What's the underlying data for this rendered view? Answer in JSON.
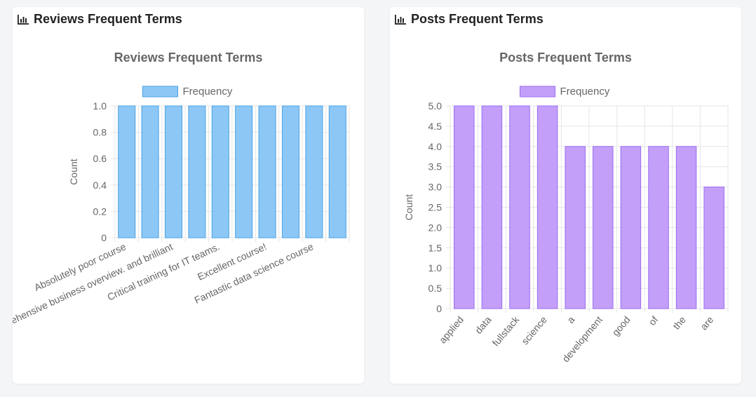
{
  "cards": [
    {
      "header": "Reviews Frequent Terms",
      "icon": "bar-chart-icon"
    },
    {
      "header": "Posts Frequent Terms",
      "icon": "bar-chart-icon"
    }
  ],
  "chart_data": [
    {
      "type": "bar",
      "title": "Reviews Frequent Terms",
      "ylabel": "Count",
      "xlabel": "",
      "legend_position": "top",
      "categories": [
        "Absolutely poor course",
        "",
        "Comprehensive business overview. and brilliant",
        "",
        "Critical training for IT teams.",
        "",
        "Excellent course!",
        "",
        "Fantastic data science course",
        ""
      ],
      "series": [
        {
          "name": "Frequency",
          "values": [
            1,
            1,
            1,
            1,
            1,
            1,
            1,
            1,
            1,
            1
          ],
          "color": "#8cc7f5",
          "border": "#4aa3e6"
        }
      ],
      "ylim": [
        0,
        1
      ],
      "yticks": [
        "0",
        "0.2",
        "0.4",
        "0.6",
        "0.8",
        "1.0"
      ],
      "grid": true
    },
    {
      "type": "bar",
      "title": "Posts Frequent Terms",
      "ylabel": "Count",
      "xlabel": "",
      "legend_position": "top",
      "categories": [
        "applied",
        "data",
        "fullstack",
        "science",
        "a",
        "development",
        "good",
        "of",
        "the",
        "are"
      ],
      "series": [
        {
          "name": "Frequency",
          "values": [
            5,
            5,
            5,
            5,
            4,
            4,
            4,
            4,
            4,
            3
          ],
          "color": "#c39ff9",
          "border": "#9b6cf0"
        }
      ],
      "ylim": [
        0,
        5
      ],
      "yticks": [
        "0",
        "0.5",
        "1.0",
        "1.5",
        "2.0",
        "2.5",
        "3.0",
        "3.5",
        "4.0",
        "4.5",
        "5.0"
      ],
      "grid": true
    }
  ]
}
